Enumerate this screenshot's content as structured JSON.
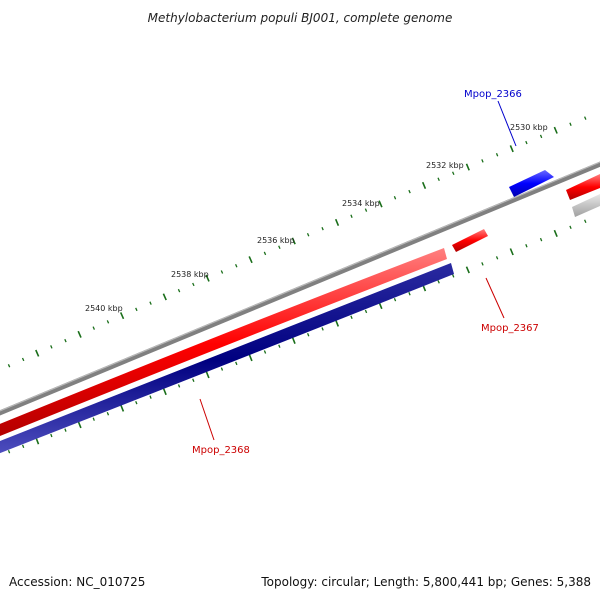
{
  "title": "Methylobacterium populi BJ001, complete genome",
  "colors": {
    "forward_gene": "#ff0000",
    "reverse_gene": "#000080",
    "highlight_gene": "#0000ff",
    "other_gene": "#c0c0c0",
    "backbone": "#808080",
    "tick": "#1a6e1a"
  },
  "ticks": [
    {
      "label": "2530 kbp"
    },
    {
      "label": "2532 kbp"
    },
    {
      "label": "2534 kbp"
    },
    {
      "label": "2536 kbp"
    },
    {
      "label": "2538 kbp"
    },
    {
      "label": "2540 kbp"
    }
  ],
  "genes": [
    {
      "name": "Mpop_2366",
      "color": "#0000cc"
    },
    {
      "name": "Mpop_2367",
      "color": "#cc0000"
    },
    {
      "name": "Mpop_2368",
      "color": "#cc0000"
    }
  ],
  "footer": {
    "accession": "Accession: NC_010725",
    "summary": "Topology: circular; Length: 5,800,441 bp; Genes: 5,388"
  }
}
